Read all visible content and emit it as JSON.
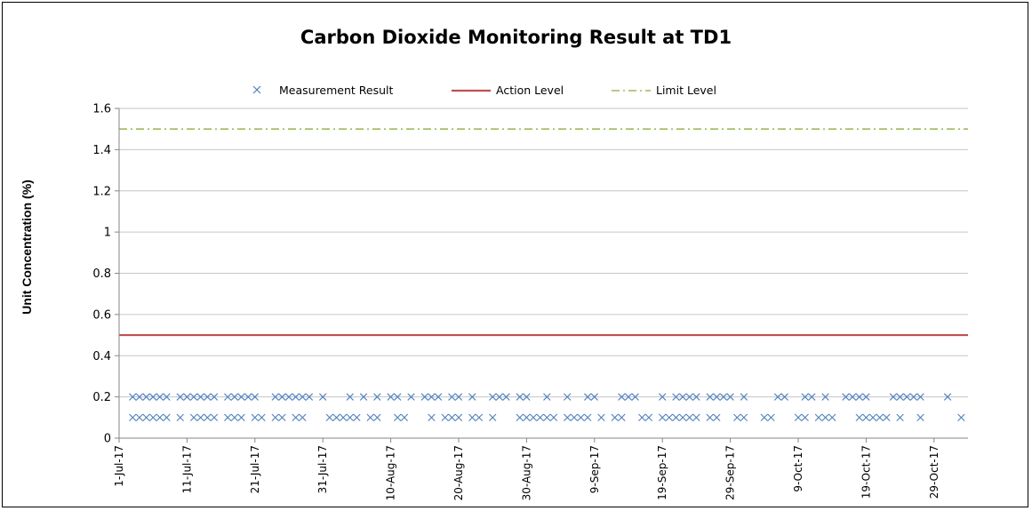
{
  "chart_data": {
    "type": "scatter",
    "title": "Carbon Dioxide Monitoring Result at TD1",
    "xlabel": "",
    "ylabel": "Unit Concentration (%)",
    "ylim": [
      0,
      1.6
    ],
    "yticks": [
      "0",
      "0.2",
      "0.4",
      "0.6",
      "0.8",
      "1",
      "1.2",
      "1.4",
      "1.6"
    ],
    "xlim": [
      "2017-07-01",
      "2017-11-03"
    ],
    "xticks": [
      {
        "date": "2017-07-01",
        "label": "1-Jul-17"
      },
      {
        "date": "2017-07-11",
        "label": "11-Jul-17"
      },
      {
        "date": "2017-07-21",
        "label": "21-Jul-17"
      },
      {
        "date": "2017-07-31",
        "label": "31-Jul-17"
      },
      {
        "date": "2017-08-10",
        "label": "10-Aug-17"
      },
      {
        "date": "2017-08-20",
        "label": "20-Aug-17"
      },
      {
        "date": "2017-08-30",
        "label": "30-Aug-17"
      },
      {
        "date": "2017-09-09",
        "label": "9-Sep-17"
      },
      {
        "date": "2017-09-19",
        "label": "19-Sep-17"
      },
      {
        "date": "2017-09-29",
        "label": "29-Sep-17"
      },
      {
        "date": "2017-10-09",
        "label": "9-Oct-17"
      },
      {
        "date": "2017-10-19",
        "label": "19-Oct-17"
      },
      {
        "date": "2017-10-29",
        "label": "29-Oct-17"
      }
    ],
    "grid": "horizontal",
    "legend_position": "top",
    "series": [
      {
        "name": "Measurement Result",
        "style": "x-marker",
        "color": "#4f81bd",
        "points": [
          {
            "x": "2017-07-03",
            "y": 0.2
          },
          {
            "x": "2017-07-04",
            "y": 0.2
          },
          {
            "x": "2017-07-05",
            "y": 0.2
          },
          {
            "x": "2017-07-06",
            "y": 0.2
          },
          {
            "x": "2017-07-07",
            "y": 0.2
          },
          {
            "x": "2017-07-08",
            "y": 0.2
          },
          {
            "x": "2017-07-10",
            "y": 0.2
          },
          {
            "x": "2017-07-11",
            "y": 0.2
          },
          {
            "x": "2017-07-12",
            "y": 0.2
          },
          {
            "x": "2017-07-13",
            "y": 0.2
          },
          {
            "x": "2017-07-14",
            "y": 0.2
          },
          {
            "x": "2017-07-15",
            "y": 0.2
          },
          {
            "x": "2017-07-17",
            "y": 0.2
          },
          {
            "x": "2017-07-18",
            "y": 0.2
          },
          {
            "x": "2017-07-19",
            "y": 0.2
          },
          {
            "x": "2017-07-20",
            "y": 0.2
          },
          {
            "x": "2017-07-21",
            "y": 0.2
          },
          {
            "x": "2017-07-24",
            "y": 0.2
          },
          {
            "x": "2017-07-25",
            "y": 0.2
          },
          {
            "x": "2017-07-26",
            "y": 0.2
          },
          {
            "x": "2017-07-27",
            "y": 0.2
          },
          {
            "x": "2017-07-28",
            "y": 0.2
          },
          {
            "x": "2017-07-29",
            "y": 0.2
          },
          {
            "x": "2017-07-31",
            "y": 0.2
          },
          {
            "x": "2017-08-04",
            "y": 0.2
          },
          {
            "x": "2017-08-06",
            "y": 0.2
          },
          {
            "x": "2017-08-08",
            "y": 0.2
          },
          {
            "x": "2017-08-10",
            "y": 0.2
          },
          {
            "x": "2017-08-11",
            "y": 0.2
          },
          {
            "x": "2017-08-13",
            "y": 0.2
          },
          {
            "x": "2017-08-15",
            "y": 0.2
          },
          {
            "x": "2017-08-16",
            "y": 0.2
          },
          {
            "x": "2017-08-17",
            "y": 0.2
          },
          {
            "x": "2017-08-19",
            "y": 0.2
          },
          {
            "x": "2017-08-20",
            "y": 0.2
          },
          {
            "x": "2017-08-22",
            "y": 0.2
          },
          {
            "x": "2017-08-25",
            "y": 0.2
          },
          {
            "x": "2017-08-26",
            "y": 0.2
          },
          {
            "x": "2017-08-27",
            "y": 0.2
          },
          {
            "x": "2017-08-29",
            "y": 0.2
          },
          {
            "x": "2017-08-30",
            "y": 0.2
          },
          {
            "x": "2017-09-02",
            "y": 0.2
          },
          {
            "x": "2017-09-05",
            "y": 0.2
          },
          {
            "x": "2017-09-08",
            "y": 0.2
          },
          {
            "x": "2017-09-09",
            "y": 0.2
          },
          {
            "x": "2017-09-13",
            "y": 0.2
          },
          {
            "x": "2017-09-14",
            "y": 0.2
          },
          {
            "x": "2017-09-15",
            "y": 0.2
          },
          {
            "x": "2017-09-19",
            "y": 0.2
          },
          {
            "x": "2017-09-21",
            "y": 0.2
          },
          {
            "x": "2017-09-22",
            "y": 0.2
          },
          {
            "x": "2017-09-23",
            "y": 0.2
          },
          {
            "x": "2017-09-24",
            "y": 0.2
          },
          {
            "x": "2017-09-26",
            "y": 0.2
          },
          {
            "x": "2017-09-27",
            "y": 0.2
          },
          {
            "x": "2017-09-28",
            "y": 0.2
          },
          {
            "x": "2017-09-29",
            "y": 0.2
          },
          {
            "x": "2017-10-01",
            "y": 0.2
          },
          {
            "x": "2017-10-06",
            "y": 0.2
          },
          {
            "x": "2017-10-07",
            "y": 0.2
          },
          {
            "x": "2017-10-10",
            "y": 0.2
          },
          {
            "x": "2017-10-11",
            "y": 0.2
          },
          {
            "x": "2017-10-13",
            "y": 0.2
          },
          {
            "x": "2017-10-16",
            "y": 0.2
          },
          {
            "x": "2017-10-17",
            "y": 0.2
          },
          {
            "x": "2017-10-18",
            "y": 0.2
          },
          {
            "x": "2017-10-19",
            "y": 0.2
          },
          {
            "x": "2017-10-23",
            "y": 0.2
          },
          {
            "x": "2017-10-24",
            "y": 0.2
          },
          {
            "x": "2017-10-25",
            "y": 0.2
          },
          {
            "x": "2017-10-26",
            "y": 0.2
          },
          {
            "x": "2017-10-27",
            "y": 0.2
          },
          {
            "x": "2017-10-31",
            "y": 0.2
          },
          {
            "x": "2017-07-03",
            "y": 0.1
          },
          {
            "x": "2017-07-04",
            "y": 0.1
          },
          {
            "x": "2017-07-05",
            "y": 0.1
          },
          {
            "x": "2017-07-06",
            "y": 0.1
          },
          {
            "x": "2017-07-07",
            "y": 0.1
          },
          {
            "x": "2017-07-08",
            "y": 0.1
          },
          {
            "x": "2017-07-10",
            "y": 0.1
          },
          {
            "x": "2017-07-12",
            "y": 0.1
          },
          {
            "x": "2017-07-13",
            "y": 0.1
          },
          {
            "x": "2017-07-14",
            "y": 0.1
          },
          {
            "x": "2017-07-15",
            "y": 0.1
          },
          {
            "x": "2017-07-17",
            "y": 0.1
          },
          {
            "x": "2017-07-18",
            "y": 0.1
          },
          {
            "x": "2017-07-19",
            "y": 0.1
          },
          {
            "x": "2017-07-21",
            "y": 0.1
          },
          {
            "x": "2017-07-22",
            "y": 0.1
          },
          {
            "x": "2017-07-24",
            "y": 0.1
          },
          {
            "x": "2017-07-25",
            "y": 0.1
          },
          {
            "x": "2017-07-27",
            "y": 0.1
          },
          {
            "x": "2017-07-28",
            "y": 0.1
          },
          {
            "x": "2017-08-01",
            "y": 0.1
          },
          {
            "x": "2017-08-02",
            "y": 0.1
          },
          {
            "x": "2017-08-03",
            "y": 0.1
          },
          {
            "x": "2017-08-04",
            "y": 0.1
          },
          {
            "x": "2017-08-05",
            "y": 0.1
          },
          {
            "x": "2017-08-07",
            "y": 0.1
          },
          {
            "x": "2017-08-08",
            "y": 0.1
          },
          {
            "x": "2017-08-11",
            "y": 0.1
          },
          {
            "x": "2017-08-12",
            "y": 0.1
          },
          {
            "x": "2017-08-16",
            "y": 0.1
          },
          {
            "x": "2017-08-18",
            "y": 0.1
          },
          {
            "x": "2017-08-19",
            "y": 0.1
          },
          {
            "x": "2017-08-20",
            "y": 0.1
          },
          {
            "x": "2017-08-22",
            "y": 0.1
          },
          {
            "x": "2017-08-23",
            "y": 0.1
          },
          {
            "x": "2017-08-25",
            "y": 0.1
          },
          {
            "x": "2017-08-29",
            "y": 0.1
          },
          {
            "x": "2017-08-30",
            "y": 0.1
          },
          {
            "x": "2017-08-31",
            "y": 0.1
          },
          {
            "x": "2017-09-01",
            "y": 0.1
          },
          {
            "x": "2017-09-02",
            "y": 0.1
          },
          {
            "x": "2017-09-03",
            "y": 0.1
          },
          {
            "x": "2017-09-05",
            "y": 0.1
          },
          {
            "x": "2017-09-06",
            "y": 0.1
          },
          {
            "x": "2017-09-07",
            "y": 0.1
          },
          {
            "x": "2017-09-08",
            "y": 0.1
          },
          {
            "x": "2017-09-10",
            "y": 0.1
          },
          {
            "x": "2017-09-12",
            "y": 0.1
          },
          {
            "x": "2017-09-13",
            "y": 0.1
          },
          {
            "x": "2017-09-16",
            "y": 0.1
          },
          {
            "x": "2017-09-17",
            "y": 0.1
          },
          {
            "x": "2017-09-19",
            "y": 0.1
          },
          {
            "x": "2017-09-20",
            "y": 0.1
          },
          {
            "x": "2017-09-21",
            "y": 0.1
          },
          {
            "x": "2017-09-22",
            "y": 0.1
          },
          {
            "x": "2017-09-23",
            "y": 0.1
          },
          {
            "x": "2017-09-24",
            "y": 0.1
          },
          {
            "x": "2017-09-26",
            "y": 0.1
          },
          {
            "x": "2017-09-27",
            "y": 0.1
          },
          {
            "x": "2017-09-30",
            "y": 0.1
          },
          {
            "x": "2017-10-01",
            "y": 0.1
          },
          {
            "x": "2017-10-04",
            "y": 0.1
          },
          {
            "x": "2017-10-05",
            "y": 0.1
          },
          {
            "x": "2017-10-09",
            "y": 0.1
          },
          {
            "x": "2017-10-10",
            "y": 0.1
          },
          {
            "x": "2017-10-12",
            "y": 0.1
          },
          {
            "x": "2017-10-13",
            "y": 0.1
          },
          {
            "x": "2017-10-14",
            "y": 0.1
          },
          {
            "x": "2017-10-18",
            "y": 0.1
          },
          {
            "x": "2017-10-19",
            "y": 0.1
          },
          {
            "x": "2017-10-20",
            "y": 0.1
          },
          {
            "x": "2017-10-21",
            "y": 0.1
          },
          {
            "x": "2017-10-22",
            "y": 0.1
          },
          {
            "x": "2017-10-24",
            "y": 0.1
          },
          {
            "x": "2017-10-27",
            "y": 0.1
          },
          {
            "x": "2017-11-02",
            "y": 0.1
          }
        ]
      },
      {
        "name": "Action Level",
        "style": "solid",
        "color": "#c0504d",
        "value": 0.5
      },
      {
        "name": "Limit Level",
        "style": "dash-dot",
        "color": "#9bbb59",
        "value": 1.5
      }
    ]
  }
}
